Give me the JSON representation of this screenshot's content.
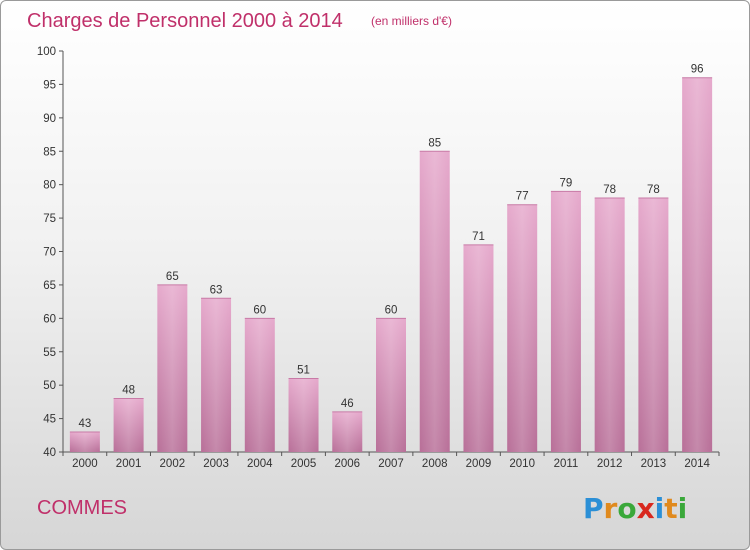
{
  "chart_data": {
    "type": "bar",
    "title": "Charges de Personnel 2000 à 2014",
    "subtitle": "(en milliers d'€)",
    "xlabel": "",
    "ylabel": "",
    "categories": [
      "2000",
      "2001",
      "2002",
      "2003",
      "2004",
      "2005",
      "2006",
      "2007",
      "2008",
      "2009",
      "2010",
      "2011",
      "2012",
      "2013",
      "2014"
    ],
    "values": [
      43,
      48,
      65,
      63,
      60,
      51,
      46,
      60,
      85,
      71,
      77,
      79,
      78,
      78,
      96
    ],
    "ylim": [
      40,
      100
    ],
    "yticks": [
      40,
      45,
      50,
      55,
      60,
      65,
      70,
      75,
      80,
      85,
      90,
      95,
      100
    ],
    "grid": false,
    "bar_color": "#d98cb5",
    "title_color": "#c0306a"
  },
  "footer": {
    "commune": "COMMES",
    "logo": "Proxiti"
  }
}
